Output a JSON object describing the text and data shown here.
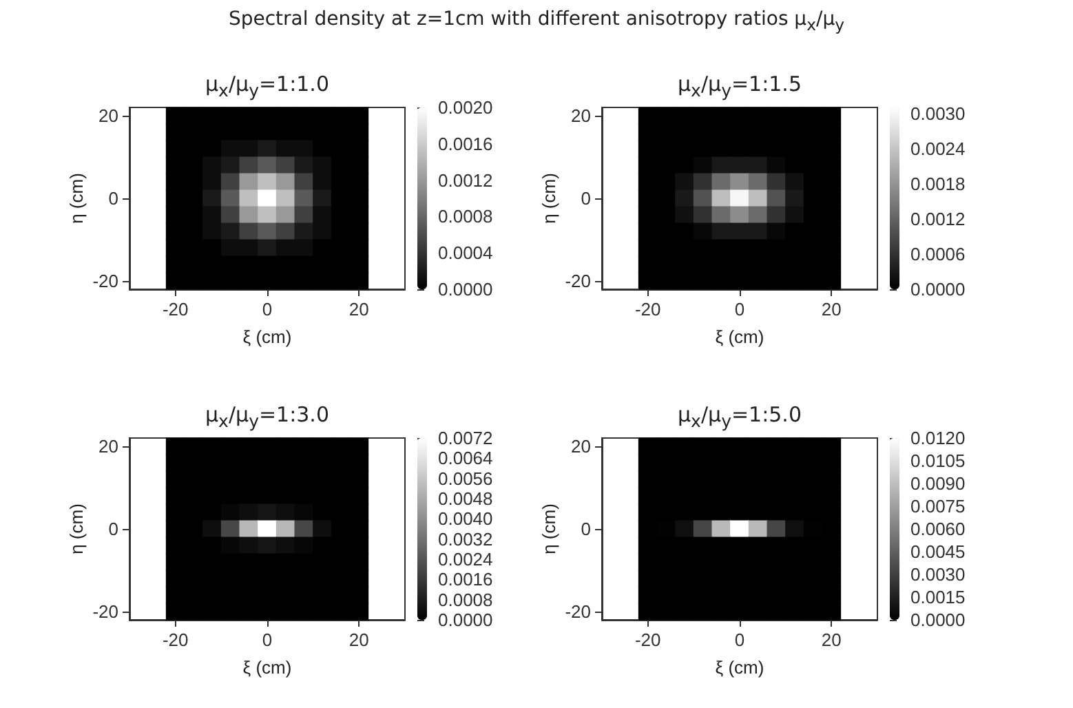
{
  "chart_data": [
    {
      "type": "heatmap",
      "title": "μ$_{x}$/μ$_{y}$=1:1.0",
      "annotations": [
        "Spectral density at z=1cm with different anisotropy ratios μ$_{x}$/μ$_{y}$"
      ],
      "xlabel": "ξ (cm)",
      "ylabel": "η (cm)",
      "categories": [
        null,
        null,
        "-20",
        null,
        null,
        null,
        null,
        "0",
        null,
        null,
        null,
        null,
        "20",
        null,
        null
      ],
      "y_categories": [
        "20",
        null,
        null,
        null,
        null,
        "0",
        null,
        null,
        null,
        null,
        "-20"
      ],
      "cells": [
        [
          null,
          null,
          0,
          0,
          0,
          0,
          0,
          0,
          0,
          0,
          0,
          0,
          0,
          null,
          null
        ],
        [
          null,
          null,
          0,
          0,
          0,
          0,
          0,
          0,
          0,
          0,
          0,
          0,
          0,
          null,
          null
        ],
        [
          null,
          null,
          0,
          0,
          0,
          0.0001,
          0.0001,
          0.0002,
          0.0001,
          0.0001,
          0,
          0,
          0,
          null,
          null
        ],
        [
          null,
          null,
          0,
          0,
          0.0001,
          0.0002,
          0.0005,
          0.0007,
          0.0005,
          0.0002,
          0.0001,
          0,
          0,
          null,
          null
        ],
        [
          null,
          null,
          0,
          0,
          0.0001,
          0.0005,
          0.0012,
          0.0015,
          0.0012,
          0.0005,
          0.0001,
          0,
          0,
          null,
          null
        ],
        [
          null,
          null,
          0,
          0,
          0.0002,
          0.0007,
          0.0015,
          0.002,
          0.0015,
          0.0007,
          0.0002,
          0,
          0,
          null,
          null
        ],
        [
          null,
          null,
          0,
          0,
          0.0001,
          0.0005,
          0.0012,
          0.0015,
          0.0012,
          0.0005,
          0.0001,
          0,
          0,
          null,
          null
        ],
        [
          null,
          null,
          0,
          0,
          0.0001,
          0.0002,
          0.0005,
          0.0007,
          0.0005,
          0.0002,
          0.0001,
          0,
          0,
          null,
          null
        ],
        [
          null,
          null,
          0,
          0,
          0,
          0.0001,
          0.0001,
          0.0002,
          0.0001,
          0.0001,
          0,
          0,
          0,
          null,
          null
        ],
        [
          null,
          null,
          0,
          0,
          0,
          0,
          0,
          0,
          0,
          0,
          0,
          0,
          0,
          null,
          null
        ],
        [
          null,
          null,
          0,
          0,
          0,
          0,
          0,
          0,
          0,
          0,
          0,
          0,
          0,
          null,
          null
        ]
      ],
      "clim": [
        0,
        0.002
      ],
      "cticks": [
        {
          "value": 0,
          "label": "0.0000"
        },
        {
          "value": 0.0004,
          "label": "0.0004"
        },
        {
          "value": 0.0008,
          "label": "0.0008"
        },
        {
          "value": 0.0012,
          "label": "0.0012"
        },
        {
          "value": 0.0016,
          "label": "0.0016"
        },
        {
          "value": 0.002,
          "label": "0.0020"
        }
      ]
    },
    {
      "type": "heatmap",
      "title": "μ$_{x}$/μ$_{y}$=1:1.5",
      "xlabel": "ξ (cm)",
      "ylabel": "η (cm)",
      "categories": [
        null,
        null,
        "-20",
        null,
        null,
        null,
        null,
        "0",
        null,
        null,
        null,
        null,
        "20",
        null,
        null
      ],
      "y_categories": [
        "20",
        null,
        null,
        null,
        null,
        "0",
        null,
        null,
        null,
        null,
        "-20"
      ],
      "cells": [
        [
          null,
          null,
          0,
          0,
          0,
          0,
          0,
          0,
          0,
          0,
          0,
          0,
          0,
          null,
          null
        ],
        [
          null,
          null,
          0,
          0,
          0,
          0,
          0,
          0,
          0,
          0,
          0,
          0,
          0,
          null,
          null
        ],
        [
          null,
          null,
          0,
          0,
          0,
          0,
          0,
          0,
          0,
          0,
          0,
          0,
          0,
          null,
          null
        ],
        [
          null,
          null,
          0,
          0,
          0,
          0.0001,
          0.0003,
          0.0003,
          0.0003,
          0.0001,
          0,
          0,
          0,
          null,
          null
        ],
        [
          null,
          null,
          0,
          0,
          0.0002,
          0.0006,
          0.0013,
          0.0017,
          0.0013,
          0.0006,
          0.0002,
          0,
          0,
          null,
          null
        ],
        [
          null,
          null,
          0,
          0,
          0.0003,
          0.001,
          0.0023,
          0.003,
          0.0023,
          0.001,
          0.0003,
          0,
          0,
          null,
          null
        ],
        [
          null,
          null,
          0,
          0,
          0.0002,
          0.0006,
          0.0013,
          0.0017,
          0.0013,
          0.0006,
          0.0002,
          0,
          0,
          null,
          null
        ],
        [
          null,
          null,
          0,
          0,
          0,
          0.0001,
          0.0003,
          0.0003,
          0.0003,
          0.0001,
          0,
          0,
          0,
          null,
          null
        ],
        [
          null,
          null,
          0,
          0,
          0,
          0,
          0,
          0,
          0,
          0,
          0,
          0,
          0,
          null,
          null
        ],
        [
          null,
          null,
          0,
          0,
          0,
          0,
          0,
          0,
          0,
          0,
          0,
          0,
          0,
          null,
          null
        ],
        [
          null,
          null,
          0,
          0,
          0,
          0,
          0,
          0,
          0,
          0,
          0,
          0,
          0,
          null,
          null
        ]
      ],
      "clim": [
        0,
        0.0031
      ],
      "cticks": [
        {
          "value": 0,
          "label": "0.0000"
        },
        {
          "value": 0.0006,
          "label": "0.0006"
        },
        {
          "value": 0.0012,
          "label": "0.0012"
        },
        {
          "value": 0.0018,
          "label": "0.0018"
        },
        {
          "value": 0.0024,
          "label": "0.0024"
        },
        {
          "value": 0.003,
          "label": "0.0030"
        }
      ]
    },
    {
      "type": "heatmap",
      "title": "μ$_{x}$/μ$_{y}$=1:3.0",
      "xlabel": "ξ (cm)",
      "ylabel": "η (cm)",
      "categories": [
        null,
        null,
        "-20",
        null,
        null,
        null,
        null,
        "0",
        null,
        null,
        null,
        null,
        "20",
        null,
        null
      ],
      "y_categories": [
        "20",
        null,
        null,
        null,
        null,
        "0",
        null,
        null,
        null,
        null,
        "-20"
      ],
      "cells": [
        [
          null,
          null,
          0,
          0,
          0,
          0,
          0,
          0,
          0,
          0,
          0,
          0,
          0,
          null,
          null
        ],
        [
          null,
          null,
          0,
          0,
          0,
          0,
          0,
          0,
          0,
          0,
          0,
          0,
          0,
          null,
          null
        ],
        [
          null,
          null,
          0,
          0,
          0,
          0,
          0,
          0,
          0,
          0,
          0,
          0,
          0,
          null,
          null
        ],
        [
          null,
          null,
          0,
          0,
          0,
          0,
          0,
          0,
          0,
          0,
          0,
          0,
          0,
          null,
          null
        ],
        [
          null,
          null,
          0,
          0,
          0,
          0.0002,
          0.0004,
          0.0006,
          0.0004,
          0.0002,
          0,
          0,
          0,
          null,
          null
        ],
        [
          null,
          null,
          0,
          0,
          0.0004,
          0.002,
          0.0052,
          0.0072,
          0.0052,
          0.002,
          0.0004,
          0,
          0,
          null,
          null
        ],
        [
          null,
          null,
          0,
          0,
          0,
          0.0002,
          0.0004,
          0.0006,
          0.0004,
          0.0002,
          0,
          0,
          0,
          null,
          null
        ],
        [
          null,
          null,
          0,
          0,
          0,
          0,
          0,
          0,
          0,
          0,
          0,
          0,
          0,
          null,
          null
        ],
        [
          null,
          null,
          0,
          0,
          0,
          0,
          0,
          0,
          0,
          0,
          0,
          0,
          0,
          null,
          null
        ],
        [
          null,
          null,
          0,
          0,
          0,
          0,
          0,
          0,
          0,
          0,
          0,
          0,
          0,
          null,
          null
        ],
        [
          null,
          null,
          0,
          0,
          0,
          0,
          0,
          0,
          0,
          0,
          0,
          0,
          0,
          null,
          null
        ]
      ],
      "clim": [
        0,
        0.0072
      ],
      "cticks": [
        {
          "value": 0,
          "label": "0.0000"
        },
        {
          "value": 0.0008,
          "label": "0.0008"
        },
        {
          "value": 0.0016,
          "label": "0.0016"
        },
        {
          "value": 0.0024,
          "label": "0.0024"
        },
        {
          "value": 0.0032,
          "label": "0.0032"
        },
        {
          "value": 0.004,
          "label": "0.0040"
        },
        {
          "value": 0.0048,
          "label": "0.0048"
        },
        {
          "value": 0.0056,
          "label": "0.0056"
        },
        {
          "value": 0.0064,
          "label": "0.0064"
        },
        {
          "value": 0.0072,
          "label": "0.0072"
        }
      ]
    },
    {
      "type": "heatmap",
      "title": "μ$_{x}$/μ$_{y}$=1:5.0",
      "xlabel": "ξ (cm)",
      "ylabel": "η (cm)",
      "categories": [
        null,
        null,
        "-20",
        null,
        null,
        null,
        null,
        "0",
        null,
        null,
        null,
        null,
        "20",
        null,
        null
      ],
      "y_categories": [
        "20",
        null,
        null,
        null,
        null,
        "0",
        null,
        null,
        null,
        null,
        "-20"
      ],
      "cells": [
        [
          null,
          null,
          0,
          0,
          0,
          0,
          0,
          0,
          0,
          0,
          0,
          0,
          0,
          null,
          null
        ],
        [
          null,
          null,
          0,
          0,
          0,
          0,
          0,
          0,
          0,
          0,
          0,
          0,
          0,
          null,
          null
        ],
        [
          null,
          null,
          0,
          0,
          0,
          0,
          0,
          0,
          0,
          0,
          0,
          0,
          0,
          null,
          null
        ],
        [
          null,
          null,
          0,
          0,
          0,
          0,
          0,
          0,
          0,
          0,
          0,
          0,
          0,
          null,
          null
        ],
        [
          null,
          null,
          0,
          0,
          0,
          0,
          0,
          0,
          0,
          0,
          0,
          0,
          0,
          null,
          null
        ],
        [
          null,
          null,
          0,
          0.0001,
          0.0007,
          0.0033,
          0.0087,
          0.012,
          0.0087,
          0.0033,
          0.0007,
          0.0001,
          0,
          null,
          null
        ],
        [
          null,
          null,
          0,
          0,
          0,
          0,
          0,
          0,
          0,
          0,
          0,
          0,
          0,
          null,
          null
        ],
        [
          null,
          null,
          0,
          0,
          0,
          0,
          0,
          0,
          0,
          0,
          0,
          0,
          0,
          null,
          null
        ],
        [
          null,
          null,
          0,
          0,
          0,
          0,
          0,
          0,
          0,
          0,
          0,
          0,
          0,
          null,
          null
        ],
        [
          null,
          null,
          0,
          0,
          0,
          0,
          0,
          0,
          0,
          0,
          0,
          0,
          0,
          null,
          null
        ],
        [
          null,
          null,
          0,
          0,
          0,
          0,
          0,
          0,
          0,
          0,
          0,
          0,
          0,
          null,
          null
        ]
      ],
      "clim": [
        0,
        0.012
      ],
      "cticks": [
        {
          "value": 0,
          "label": "0.0000"
        },
        {
          "value": 0.0015,
          "label": "0.0015"
        },
        {
          "value": 0.003,
          "label": "0.0030"
        },
        {
          "value": 0.0045,
          "label": "0.0045"
        },
        {
          "value": 0.006,
          "label": "0.0060"
        },
        {
          "value": 0.0075,
          "label": "0.0075"
        },
        {
          "value": 0.009,
          "label": "0.0090"
        },
        {
          "value": 0.0105,
          "label": "0.0105"
        },
        {
          "value": 0.012,
          "label": "0.0120"
        }
      ]
    }
  ]
}
